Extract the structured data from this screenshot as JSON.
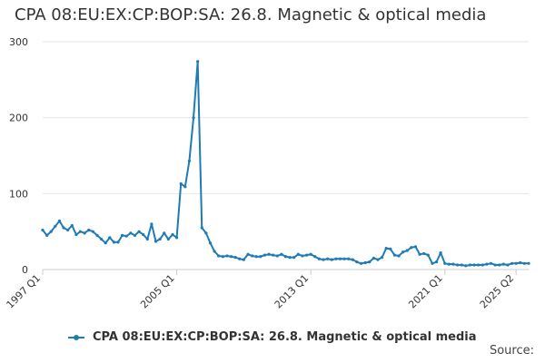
{
  "title": "CPA 08:EU:EX:CP:BOP:SA: 26.8. Magnetic & optical media",
  "source_label": "Source:",
  "colors": {
    "series": "#1f7bb6",
    "grid": "#e6e6e6",
    "axis": "#cccccc",
    "text": "#333333"
  },
  "chart_data": {
    "type": "line",
    "title": "CPA 08:EU:EX:CP:BOP:SA: 26.8. Magnetic & optical media",
    "xlabel": "",
    "ylabel": "",
    "ylim": [
      0,
      300
    ],
    "yticks": [
      0,
      100,
      200,
      300
    ],
    "x_start_label": "1997 Q1",
    "xticks": [
      "1997 Q1",
      "2005 Q1",
      "2013 Q1",
      "2021 Q1",
      "2025 Q2"
    ],
    "grid": true,
    "legend": "bottom",
    "series": [
      {
        "name": "CPA 08:EU:EX:CP:BOP:SA: 26.8. Magnetic & optical media",
        "values": [
          52,
          45,
          50,
          57,
          64,
          55,
          52,
          58,
          46,
          50,
          48,
          52,
          50,
          45,
          40,
          35,
          42,
          36,
          36,
          45,
          44,
          48,
          45,
          50,
          46,
          40,
          60,
          37,
          40,
          48,
          40,
          46,
          42,
          113,
          109,
          143,
          200,
          274,
          55,
          48,
          35,
          24,
          18,
          17,
          18,
          17,
          16,
          14,
          13,
          20,
          18,
          17,
          17,
          19,
          20,
          19,
          18,
          20,
          17,
          16,
          16,
          20,
          18,
          19,
          20,
          17,
          14,
          13,
          14,
          13,
          14,
          14,
          14,
          14,
          13,
          10,
          8,
          9,
          10,
          15,
          13,
          16,
          28,
          27,
          19,
          18,
          23,
          25,
          29,
          30,
          20,
          21,
          19,
          8,
          10,
          22,
          8,
          7,
          7,
          6,
          6,
          5,
          6,
          6,
          6,
          6,
          7,
          8,
          6,
          6,
          7,
          6,
          8,
          8,
          9,
          8,
          8
        ]
      }
    ]
  }
}
